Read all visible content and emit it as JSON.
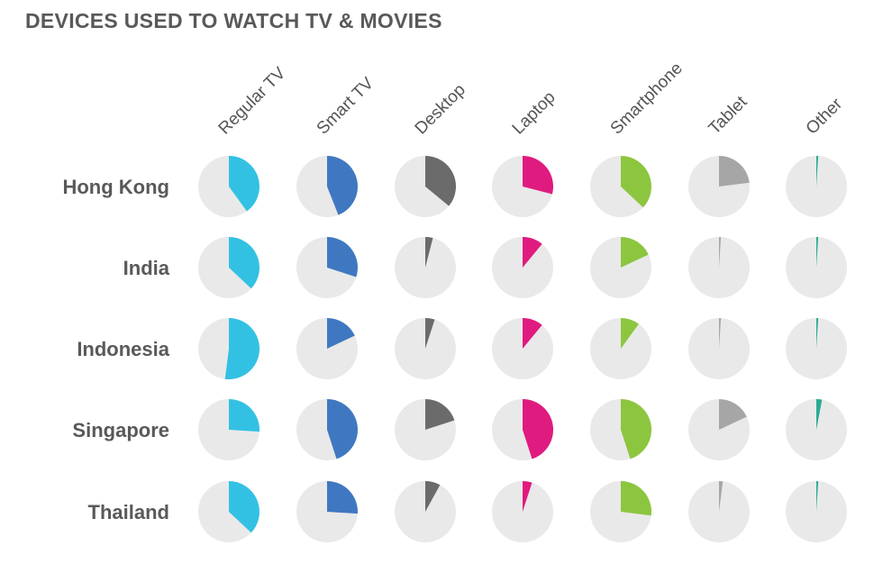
{
  "chart_data": {
    "type": "pie",
    "title": "DEVICES USED TO WATCH TV & MOVIES",
    "columns": [
      "Regular TV",
      "Smart TV",
      "Desktop",
      "Laptop",
      "Smartphone",
      "Tablet",
      "Other"
    ],
    "rows": [
      "Hong Kong",
      "India",
      "Indonesia",
      "Singapore",
      "Thailand"
    ],
    "values": {
      "Hong Kong": [
        40,
        44,
        36,
        29,
        37,
        23,
        1
      ],
      "India": [
        37,
        30,
        4,
        11,
        18,
        1,
        1
      ],
      "Indonesia": [
        52,
        18,
        5,
        11,
        10,
        1,
        1
      ],
      "Singapore": [
        26,
        45,
        20,
        45,
        45,
        18,
        3
      ],
      "Thailand": [
        37,
        26,
        8,
        5,
        27,
        2,
        1
      ]
    },
    "units": "percent of respondents (slice of full circle)",
    "colors": {
      "Regular TV": "#33C1E3",
      "Smart TV": "#3F78C1",
      "Desktop": "#6B6B6B",
      "Laptop": "#E01B7F",
      "Smartphone": "#8CC63F",
      "Tablet": "#A6A6A6",
      "Other": "#2AAA92"
    },
    "background_color": "#E9E9E9"
  }
}
